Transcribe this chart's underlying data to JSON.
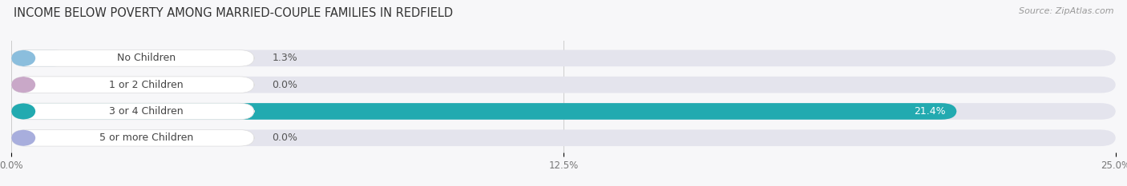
{
  "title": "INCOME BELOW POVERTY AMONG MARRIED-COUPLE FAMILIES IN REDFIELD",
  "source": "Source: ZipAtlas.com",
  "categories": [
    "No Children",
    "1 or 2 Children",
    "3 or 4 Children",
    "5 or more Children"
  ],
  "values": [
    1.3,
    0.0,
    21.4,
    0.0
  ],
  "bar_colors": [
    "#8bbedd",
    "#c9a8c8",
    "#22aab0",
    "#a8aedd"
  ],
  "xmax": 25.0,
  "xticks": [
    0.0,
    12.5,
    25.0
  ],
  "xtick_labels": [
    "0.0%",
    "12.5%",
    "25.0%"
  ],
  "background_color": "#f7f7f9",
  "bar_bg_color": "#e4e4ed",
  "label_pill_color": "#ffffff",
  "title_fontsize": 10.5,
  "source_fontsize": 8,
  "label_fontsize": 9,
  "value_fontsize": 9,
  "value_labels": [
    "1.3%",
    "0.0%",
    "21.4%",
    "0.0%"
  ]
}
